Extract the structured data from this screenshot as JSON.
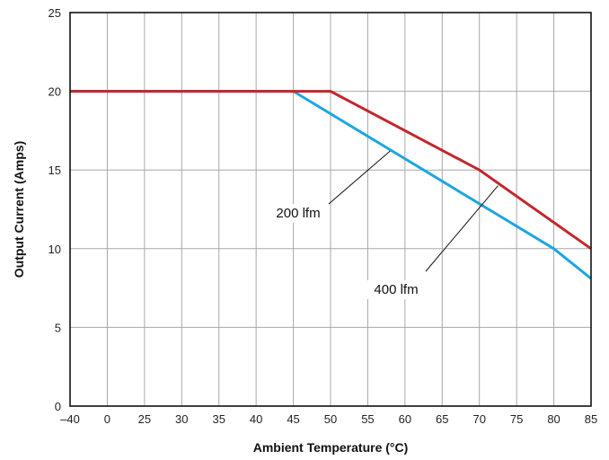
{
  "chart_data": {
    "type": "line",
    "xlabel": "Ambient Temperature (°C)",
    "ylabel": "Output Current (Amps)",
    "x_ticks": [
      "–40",
      "0",
      "25",
      "30",
      "35",
      "40",
      "45",
      "50",
      "55",
      "60",
      "65",
      "70",
      "75",
      "80",
      "85"
    ],
    "y_ticks": [
      "0",
      "5",
      "10",
      "15",
      "20",
      "25"
    ],
    "ylim": [
      0,
      25
    ],
    "grid": true,
    "series": [
      {
        "name": "",
        "color": "#c1272d",
        "points": [
          {
            "x": -40,
            "y": 20
          },
          {
            "x": 50,
            "y": 20
          },
          {
            "x": 70,
            "y": 15
          },
          {
            "x": 85,
            "y": 10
          }
        ]
      },
      {
        "name": "",
        "color": "#1ea6e0",
        "points": [
          {
            "x": -40,
            "y": 20
          },
          {
            "x": 45,
            "y": 20
          },
          {
            "x": 80,
            "y": 10
          },
          {
            "x": 85,
            "y": 8.1
          }
        ]
      }
    ],
    "annotations": [
      {
        "text": "200 lfm",
        "target": {
          "x": 58,
          "y": 16.2
        }
      },
      {
        "text": "400 lfm",
        "target": {
          "x": 72.5,
          "y": 14
        }
      }
    ]
  }
}
